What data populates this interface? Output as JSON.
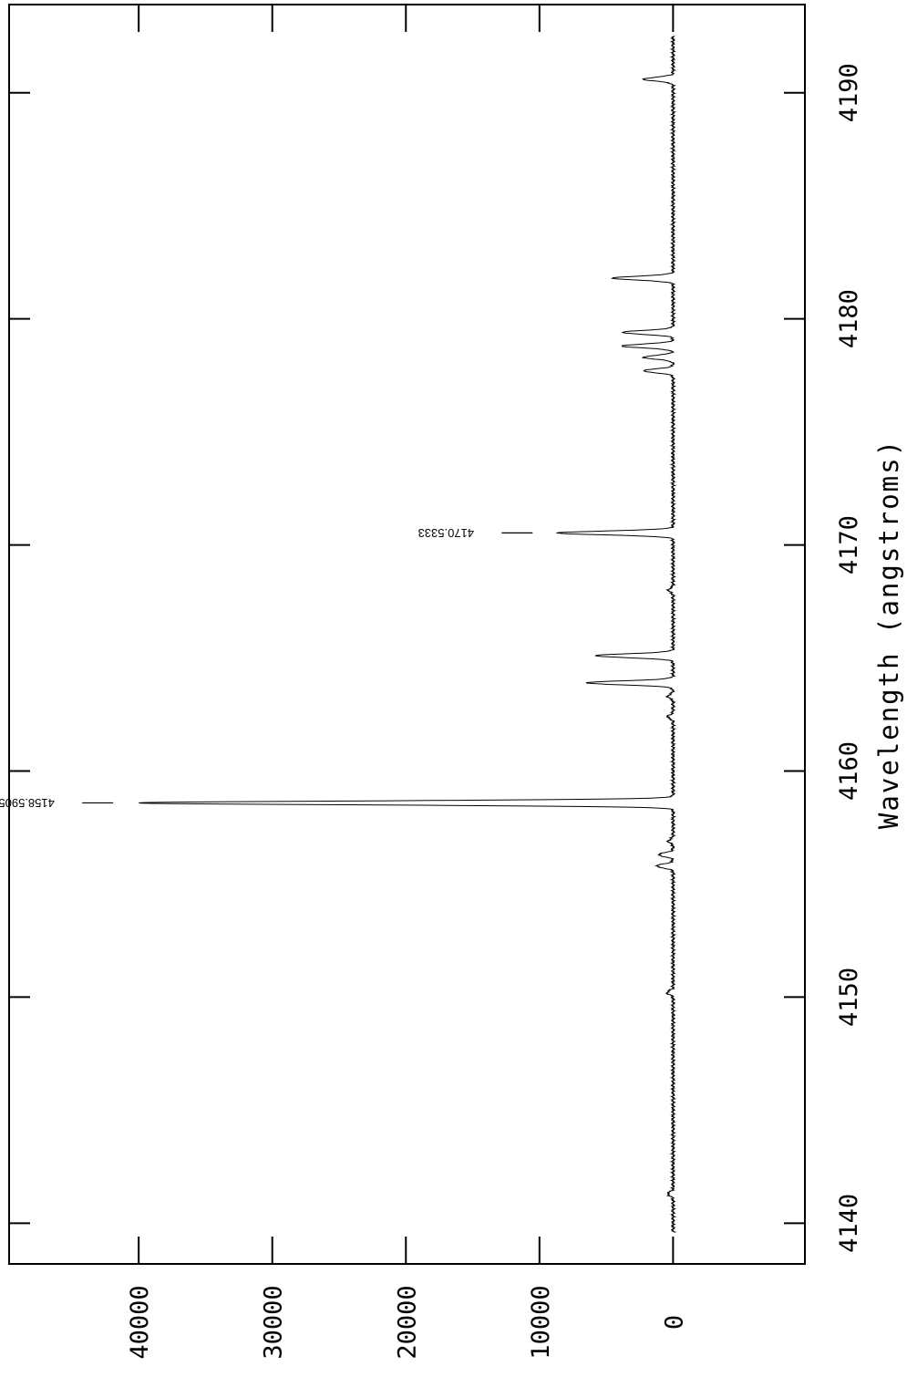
{
  "chart_data": {
    "type": "line",
    "title": "",
    "xlabel": "Wavelength (angstroms)",
    "ylabel": "",
    "xlim": [
      4138.2,
      4193.9
    ],
    "ylim": [
      -9870,
      49700
    ],
    "orientation": "rotated-90-clockwise",
    "x_ticks": [
      4140,
      4150,
      4160,
      4170,
      4180,
      4190
    ],
    "y_ticks": [
      0,
      10000,
      20000,
      30000,
      40000
    ],
    "grid": false,
    "legend": "none",
    "peaks": [
      {
        "x": 4141.3,
        "y": 400
      },
      {
        "x": 4150.2,
        "y": 450
      },
      {
        "x": 4155.8,
        "y": 1250
      },
      {
        "x": 4156.3,
        "y": 1100
      },
      {
        "x": 4156.9,
        "y": 350
      },
      {
        "x": 4158.59,
        "y": 40000
      },
      {
        "x": 4162.4,
        "y": 400
      },
      {
        "x": 4163.3,
        "y": 400
      },
      {
        "x": 4163.9,
        "y": 6500
      },
      {
        "x": 4165.1,
        "y": 5800
      },
      {
        "x": 4168.0,
        "y": 350
      },
      {
        "x": 4170.53,
        "y": 8600
      },
      {
        "x": 4177.7,
        "y": 2200
      },
      {
        "x": 4178.3,
        "y": 2200
      },
      {
        "x": 4178.8,
        "y": 3800
      },
      {
        "x": 4179.4,
        "y": 3800
      },
      {
        "x": 4181.8,
        "y": 4500
      },
      {
        "x": 4190.6,
        "y": 2200
      }
    ],
    "annotations": [
      {
        "x": 4158.5905,
        "label": "4158.5905"
      },
      {
        "x": 4170.5333,
        "label": "4170.5333"
      }
    ]
  }
}
